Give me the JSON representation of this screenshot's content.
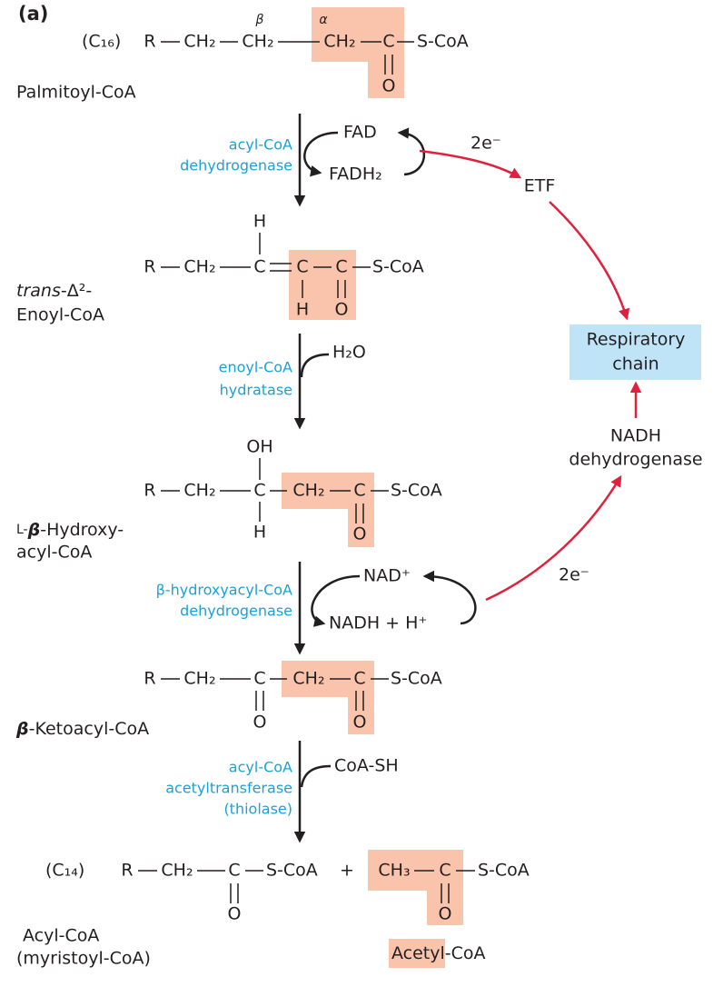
{
  "panel_label": "(a)",
  "molecules": [
    {
      "chain": "(C₁₆)",
      "greek": [
        "β",
        "α"
      ],
      "atoms": [
        "R",
        "CH₂",
        "CH₂",
        "CH₂",
        "C",
        "S-CoA",
        "O"
      ],
      "name": [
        "Palmitoyl-CoA"
      ]
    },
    {
      "atoms": [
        "H",
        "R",
        "CH₂",
        "C",
        "C",
        "C",
        "S-CoA",
        "H",
        "O"
      ],
      "name": [
        "trans",
        "-Δ²-",
        "Enoyl-CoA"
      ]
    },
    {
      "atoms": [
        "OH",
        "R",
        "CH₂",
        "C",
        "CH₂",
        "C",
        "S-CoA",
        "H",
        "O"
      ],
      "name": [
        "L-",
        "β",
        "-Hydroxy-",
        "acyl-CoA"
      ]
    },
    {
      "atoms": [
        "R",
        "CH₂",
        "C",
        "CH₂",
        "C",
        "S-CoA",
        "O",
        "O"
      ],
      "name": [
        "β",
        "-Ketoacyl-CoA"
      ]
    }
  ],
  "products": {
    "chain": "(C₁₄)",
    "acyl_atoms": [
      "R",
      "CH₂",
      "C",
      "S-CoA",
      "O"
    ],
    "plus": "+",
    "acetyl_atoms": [
      "CH₃",
      "C",
      "S-CoA",
      "O"
    ],
    "acyl_name": [
      "Acyl-CoA",
      "(myristoyl-CoA)"
    ],
    "acetyl_name": [
      "Acetyl",
      "-CoA"
    ]
  },
  "steps": [
    {
      "enzyme": [
        "acyl-CoA",
        "dehydrogenase"
      ],
      "cofactors": [
        "FAD",
        "FADH₂"
      ]
    },
    {
      "enzyme": [
        "enoyl-CoA",
        "hydratase"
      ],
      "cofactors": [
        "H₂O"
      ]
    },
    {
      "enzyme": [
        "β-hydroxyacyl-CoA",
        "dehydrogenase"
      ],
      "cofactors": [
        "NAD⁺",
        "NADH + H⁺"
      ]
    },
    {
      "enzyme": [
        "acyl-CoA",
        "acetyltransferase",
        "(thiolase)"
      ],
      "cofactors": [
        "CoA-SH"
      ]
    }
  ],
  "electron_transfer": {
    "electrons": [
      "2e⁻",
      "2e⁻"
    ],
    "etf": "ETF",
    "respiratory_chain": [
      "Respiratory",
      "chain"
    ],
    "nadh_dehydrogenase": [
      "NADH",
      "dehydrogenase"
    ]
  }
}
